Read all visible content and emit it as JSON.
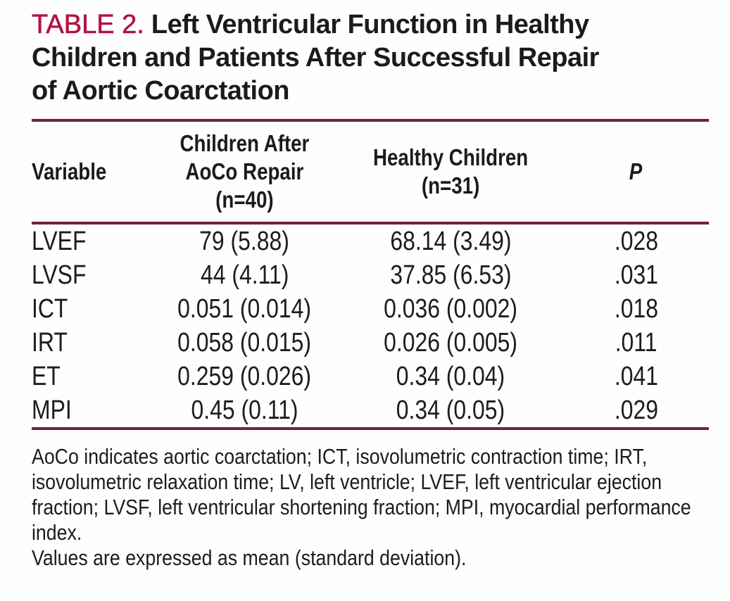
{
  "page": {
    "kind": "journal-table-scan",
    "background_color": "#ffffff",
    "text_color": "#1c1c1c"
  },
  "colors": {
    "table_label_red": "#b11443",
    "rule_maroon": "#6e2145"
  },
  "title": {
    "label": "TABLE 2.",
    "text": "Left Ventricular Function in Healthy\nChildren and Patients After Successful Repair\nof Aortic Coarctation"
  },
  "table": {
    "columns": [
      {
        "key": "variable",
        "label": "Variable"
      },
      {
        "key": "aoco",
        "label": "Children After\nAoCo Repair\n(n=40)"
      },
      {
        "key": "healthy",
        "label": "Healthy Children\n(n=31)"
      },
      {
        "key": "p",
        "label": "P"
      }
    ],
    "rows": [
      {
        "variable": "LVEF",
        "aoco": "79 (5.88)",
        "healthy": "68.14 (3.49)",
        "p": ".028"
      },
      {
        "variable": "LVSF",
        "aoco": "44 (4.11)",
        "healthy": "37.85 (6.53)",
        "p": ".031"
      },
      {
        "variable": "ICT",
        "aoco": "0.051 (0.014)",
        "healthy": "0.036 (0.002)",
        "p": ".018"
      },
      {
        "variable": "IRT",
        "aoco": "0.058 (0.015)",
        "healthy": "0.026 (0.005)",
        "p": ".011"
      },
      {
        "variable": "ET",
        "aoco": "0.259 (0.026)",
        "healthy": "0.34 (0.04)",
        "p": ".041"
      },
      {
        "variable": "MPI",
        "aoco": "0.45 (0.11)",
        "healthy": "0.34 (0.05)",
        "p": ".029"
      }
    ]
  },
  "footnotes": {
    "abbreviations": "AoCo indicates aortic coarctation; ICT, isovolumetric contraction time; IRT,\nisovolumetric relaxation time; LV, left ventricle; LVEF, left ventricular ejection\nfraction; LVSF, left ventricular shortening fraction; MPI, myocardial performance\nindex.",
    "values_note": "Values are expressed as mean (standard deviation)."
  }
}
